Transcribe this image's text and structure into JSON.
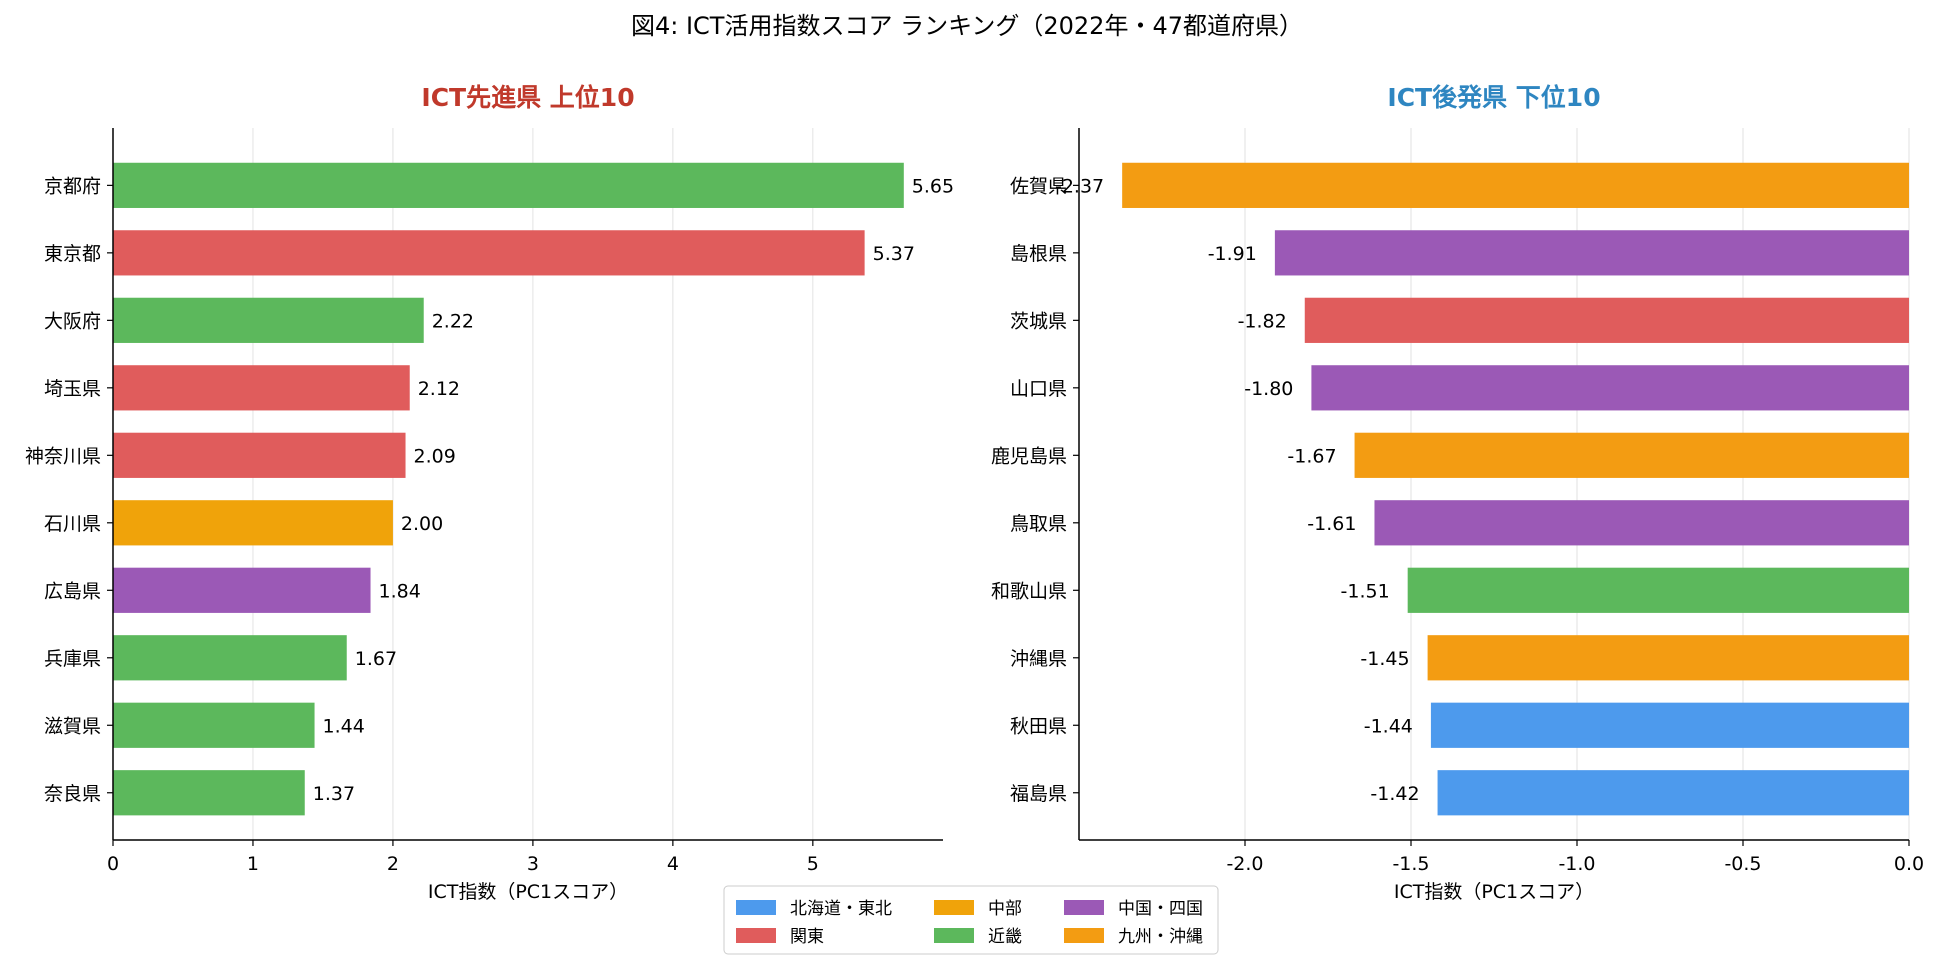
{
  "figure_title": "図4: ICT活用指数スコア ランキング（2022年・47都道府県）",
  "colors": {
    "北海道・東北": "#4d9aed",
    "関東": "#e05c5c",
    "中部": "#f0a30a",
    "近畿": "#5cb85c",
    "中国・四国": "#9b59b6",
    "九州・沖縄": "#f39c12",
    "title_top": "#c0392b",
    "title_bottom": "#2e86c1",
    "grid": "#e2e2e2",
    "axis": "#000000"
  },
  "legend": {
    "position": "bottom-center",
    "items": [
      {
        "label": "北海道・東北",
        "region": "北海道・東北"
      },
      {
        "label": "関東",
        "region": "関東"
      },
      {
        "label": "中部",
        "region": "中部"
      },
      {
        "label": "近畿",
        "region": "近畿"
      },
      {
        "label": "中国・四国",
        "region": "中国・四国"
      },
      {
        "label": "九州・沖縄",
        "region": "九州・沖縄"
      }
    ]
  },
  "chart_data": [
    {
      "type": "bar",
      "orientation": "horizontal",
      "title": "ICT先進県 上位10",
      "xlabel": "ICT指数（PC1スコア）",
      "ylabel": "",
      "xlim": [
        0,
        5.93
      ],
      "xticks": [
        0,
        1,
        2,
        3,
        4,
        5
      ],
      "xtick_labels": [
        "0",
        "1",
        "2",
        "3",
        "4",
        "5"
      ],
      "grid": "x",
      "label_format": 2,
      "categories": [
        "京都府",
        "東京都",
        "大阪府",
        "埼玉県",
        "神奈川県",
        "石川県",
        "広島県",
        "兵庫県",
        "滋賀県",
        "奈良県"
      ],
      "values": [
        5.65,
        5.37,
        2.22,
        2.12,
        2.09,
        2.0,
        1.84,
        1.67,
        1.44,
        1.37
      ],
      "regions": [
        "近畿",
        "関東",
        "近畿",
        "関東",
        "関東",
        "中部",
        "中国・四国",
        "近畿",
        "近畿",
        "近畿"
      ]
    },
    {
      "type": "bar",
      "orientation": "horizontal",
      "title": "ICT後発県 下位10",
      "xlabel": "ICT指数（PC1スコア）",
      "ylabel": "",
      "xlim": [
        -2.5,
        0.0
      ],
      "xticks": [
        -2.0,
        -1.5,
        -1.0,
        -0.5,
        0.0
      ],
      "xtick_labels": [
        "-2.0",
        "-1.5",
        "-1.0",
        "-0.5",
        "0.0"
      ],
      "grid": "x",
      "label_format": 2,
      "categories": [
        "佐賀県",
        "島根県",
        "茨城県",
        "山口県",
        "鹿児島県",
        "鳥取県",
        "和歌山県",
        "沖縄県",
        "秋田県",
        "福島県"
      ],
      "values": [
        -2.37,
        -1.91,
        -1.82,
        -1.8,
        -1.67,
        -1.61,
        -1.51,
        -1.45,
        -1.44,
        -1.42
      ],
      "regions": [
        "九州・沖縄",
        "中国・四国",
        "関東",
        "中国・四国",
        "九州・沖縄",
        "中国・四国",
        "近畿",
        "九州・沖縄",
        "北海道・東北",
        "北海道・東北"
      ]
    }
  ]
}
